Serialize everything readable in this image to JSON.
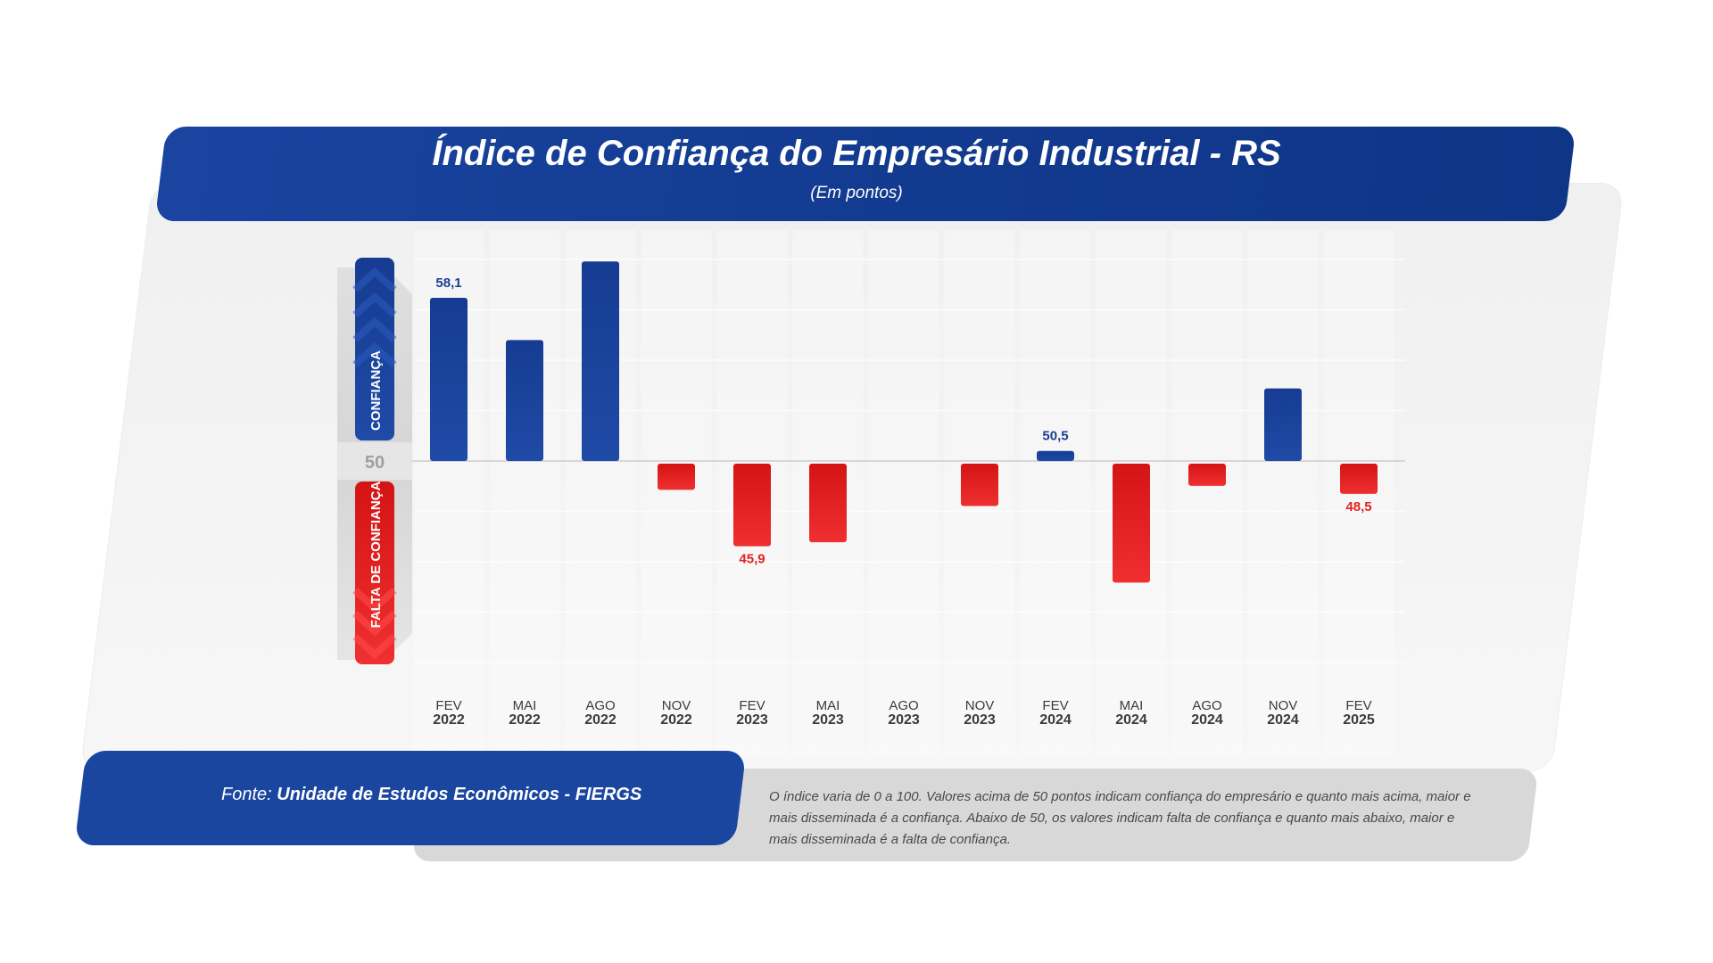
{
  "header": {
    "title": "Índice de Confiança do Empresário Industrial - RS",
    "subtitle": "(Em pontos)"
  },
  "footer": {
    "source_label": "Fonte:",
    "source_name": "Unidade de Estudos Econômicos - FIERGS",
    "note_lines": [
      "O índice varia de 0 a 100. Valores acima de 50 pontos indicam confiança do empresário e quanto mais acima, maior e",
      "mais disseminada é a confiança. Abaixo de 50, os valores indicam falta de confiança e quanto mais abaixo, maior e",
      "mais disseminada é a falta de confiança."
    ]
  },
  "chart_data": {
    "type": "bar",
    "title": "Índice de Confiança do Empresário Industrial - RS",
    "subtitle": "(Em pontos)",
    "baseline": 50,
    "baseline_label": "50",
    "scale_labels": {
      "above": "CONFIANÇA",
      "below": "FALTA DE CONFIANÇA"
    },
    "categories": [
      [
        "FEV",
        "2022"
      ],
      [
        "MAI",
        "2022"
      ],
      [
        "AGO",
        "2022"
      ],
      [
        "NOV",
        "2022"
      ],
      [
        "FEV",
        "2023"
      ],
      [
        "MAI",
        "2023"
      ],
      [
        "AGO",
        "2023"
      ],
      [
        "NOV",
        "2023"
      ],
      [
        "FEV",
        "2024"
      ],
      [
        "MAI",
        "2024"
      ],
      [
        "AGO",
        "2024"
      ],
      [
        "NOV",
        "2024"
      ],
      [
        "FEV",
        "2025"
      ]
    ],
    "values": [
      58.1,
      56.0,
      59.9,
      48.7,
      45.9,
      46.1,
      50.0,
      47.9,
      50.5,
      44.1,
      48.9,
      53.6,
      48.5
    ],
    "value_labels": [
      "58,1",
      "",
      "",
      "",
      "45,9",
      "",
      "",
      "",
      "50,5",
      "",
      "",
      "",
      "48,5"
    ],
    "colors": {
      "positive": "#1a46a0",
      "negative": "#ef2a2a",
      "label_positive": "#1b3f94",
      "label_negative": "#e42020"
    }
  }
}
